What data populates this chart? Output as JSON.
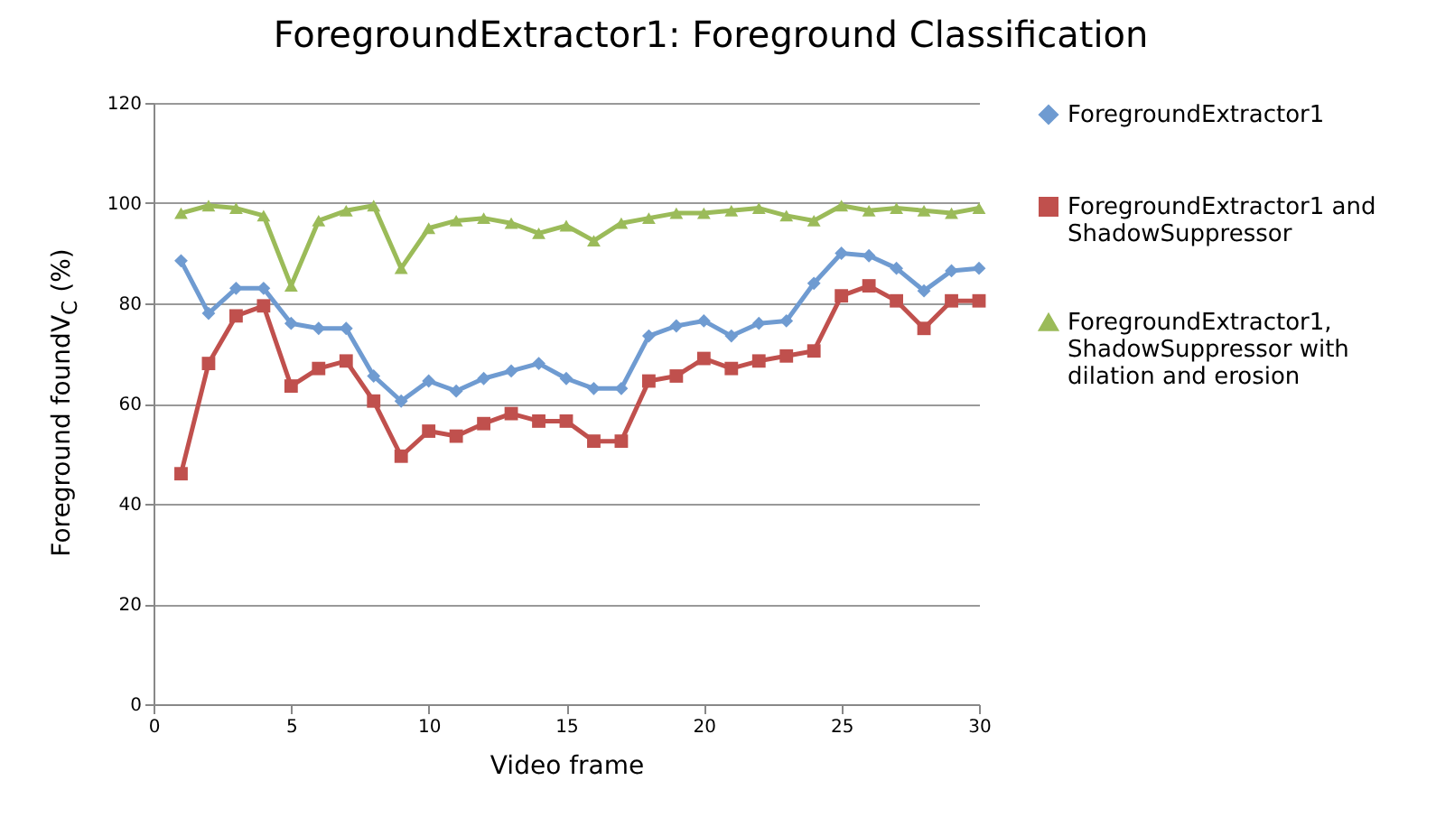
{
  "chart_data": {
    "type": "line",
    "title": "ForegroundExtractor1: Foreground Classification",
    "xlabel": "Video frame",
    "ylabel": "Foreground foundV$_{C}$ (%)",
    "x": [
      1,
      2,
      3,
      4,
      5,
      6,
      7,
      8,
      9,
      10,
      11,
      12,
      13,
      14,
      15,
      16,
      17,
      18,
      19,
      20,
      21,
      22,
      23,
      24,
      25,
      26,
      27,
      28,
      29,
      30
    ],
    "series": [
      {
        "name": "ForegroundExtractor1",
        "color": "#6f9bd1",
        "marker": "diamond",
        "values": [
          88.5,
          78,
          83,
          83,
          76,
          75,
          75,
          65.5,
          60.5,
          64.5,
          62.5,
          65,
          66.5,
          68,
          65,
          63,
          63,
          73.5,
          75.5,
          76.5,
          73.5,
          76,
          76.5,
          84,
          90,
          89.5,
          87,
          82.5,
          86.5,
          87
        ]
      },
      {
        "name": "ForegroundExtractor1 and ShadowSuppressor",
        "color": "#c0504d",
        "marker": "square",
        "values": [
          46,
          68,
          77.5,
          79.5,
          63.5,
          67,
          68.5,
          60.5,
          49.5,
          54.5,
          53.5,
          56,
          58,
          56.5,
          56.5,
          52.5,
          52.5,
          64.5,
          65.5,
          69,
          67,
          68.5,
          69.5,
          70.5,
          81.5,
          83.5,
          80.5,
          75,
          80.5,
          80.5
        ]
      },
      {
        "name": "ForegroundExtractor1, ShadowSuppressor with dilation and erosion",
        "color": "#9bbb59",
        "marker": "triangle",
        "values": [
          98,
          99.5,
          99,
          97.5,
          83.5,
          96.5,
          98.5,
          99.5,
          87,
          95,
          96.5,
          97,
          96,
          94,
          95.5,
          92.5,
          96,
          97,
          98,
          98,
          98.5,
          99,
          97.5,
          96.5,
          99.5,
          98.5,
          99,
          98.5,
          98,
          99
        ]
      }
    ],
    "xlim": [
      0,
      30
    ],
    "xticks": [
      0,
      5,
      10,
      15,
      20,
      25,
      30
    ],
    "ylim": [
      0,
      120
    ],
    "yticks": [
      0,
      20,
      40,
      60,
      80,
      100,
      120
    ],
    "grid": "y",
    "legend": "right"
  }
}
